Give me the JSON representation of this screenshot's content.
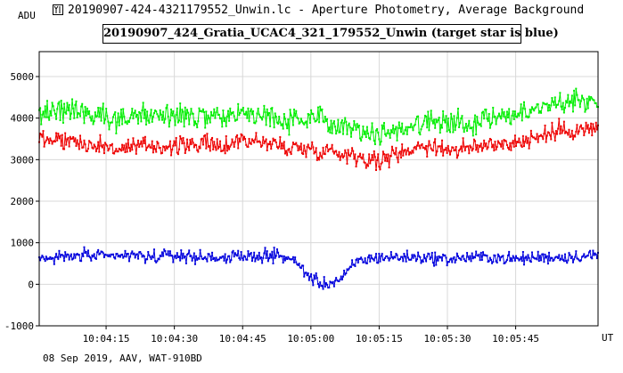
{
  "window": {
    "title": "20190907-424-4321179552_Unwin.lc - Aperture Photometry, Average Background"
  },
  "footer": {
    "text": "08 Sep 2019, AAV, WAT-910BD"
  },
  "chart_data": {
    "type": "line",
    "title": "20190907_424_Gratia_UCAC4_321_179552_Unwin (target star is blue)",
    "ylabel": "ADU",
    "xlabel": "UT",
    "ylim": [
      -1000,
      5600
    ],
    "yticks": [
      -1000,
      0,
      1000,
      2000,
      3000,
      4000,
      5000
    ],
    "ytick_labels": [
      "-1000",
      "0",
      "1000",
      "2000",
      "3000",
      "4000",
      "5000"
    ],
    "xlim": [
      "10:04:00.3",
      "10:06:03.1"
    ],
    "xticks": [
      "10:04:15",
      "10:04:30",
      "10:04:45",
      "10:05:00",
      "10:05:15",
      "10:05:30",
      "10:05:45"
    ],
    "grid": true,
    "colors": {
      "green": "#00ee00",
      "red": "#ee0000",
      "blue": "#0000dd",
      "axes": "#000000",
      "grid": "#d8d8d8"
    },
    "series": [
      {
        "color_name": "green",
        "x": [
          "10:04:00.3",
          "10:04:05.0",
          "10:04:10.0",
          "10:04:15.0",
          "10:04:20.0",
          "10:04:25.0",
          "10:04:30.0",
          "10:04:35.0",
          "10:04:40.0",
          "10:04:45.0",
          "10:04:50.0",
          "10:04:55.0",
          "10:05:00.0",
          "10:05:05.0",
          "10:05:10.0",
          "10:05:15.0",
          "10:05:20.0",
          "10:05:25.0",
          "10:05:30.0",
          "10:05:35.0",
          "10:05:40.0",
          "10:05:45.0",
          "10:05:50.0",
          "10:05:55.0",
          "10:06:03.1"
        ],
        "values": [
          4050,
          4250,
          4150,
          4050,
          4000,
          4100,
          4000,
          4050,
          3950,
          4150,
          4050,
          3950,
          3950,
          3950,
          3750,
          3600,
          3750,
          3900,
          3950,
          3850,
          4050,
          4050,
          4250,
          4400,
          4450
        ]
      },
      {
        "color_name": "red",
        "x": [
          "10:04:00.3",
          "10:04:05.0",
          "10:04:10.0",
          "10:04:15.0",
          "10:04:20.0",
          "10:04:25.0",
          "10:04:30.0",
          "10:04:35.0",
          "10:04:40.0",
          "10:04:45.0",
          "10:04:50.0",
          "10:04:55.0",
          "10:05:00.0",
          "10:05:05.0",
          "10:05:10.0",
          "10:05:15.0",
          "10:05:20.0",
          "10:05:25.0",
          "10:05:30.0",
          "10:05:35.0",
          "10:05:40.0",
          "10:05:45.0",
          "10:05:50.0",
          "10:05:55.0",
          "10:06:03.1"
        ],
        "values": [
          3500,
          3500,
          3400,
          3300,
          3250,
          3350,
          3300,
          3400,
          3300,
          3500,
          3400,
          3300,
          3250,
          3200,
          3100,
          2950,
          3200,
          3350,
          3250,
          3250,
          3400,
          3400,
          3550,
          3700,
          3750
        ]
      },
      {
        "color_name": "blue",
        "x": [
          "10:04:00.3",
          "10:04:05.0",
          "10:04:10.0",
          "10:04:15.0",
          "10:04:20.0",
          "10:04:25.0",
          "10:04:30.0",
          "10:04:35.0",
          "10:04:40.0",
          "10:04:45.0",
          "10:04:50.0",
          "10:04:55.0",
          "10:04:57.5",
          "10:05:00.0",
          "10:05:02.5",
          "10:05:05.0",
          "10:05:07.0",
          "10:05:10.0",
          "10:05:15.0",
          "10:05:20.0",
          "10:05:25.0",
          "10:05:30.0",
          "10:05:35.0",
          "10:05:40.0",
          "10:05:45.0",
          "10:05:50.0",
          "10:05:55.0",
          "10:06:03.1"
        ],
        "values": [
          600,
          650,
          700,
          650,
          700,
          650,
          700,
          650,
          650,
          650,
          700,
          650,
          450,
          150,
          0,
          50,
          150,
          550,
          650,
          650,
          650,
          600,
          650,
          650,
          600,
          650,
          650,
          700
        ]
      }
    ]
  }
}
